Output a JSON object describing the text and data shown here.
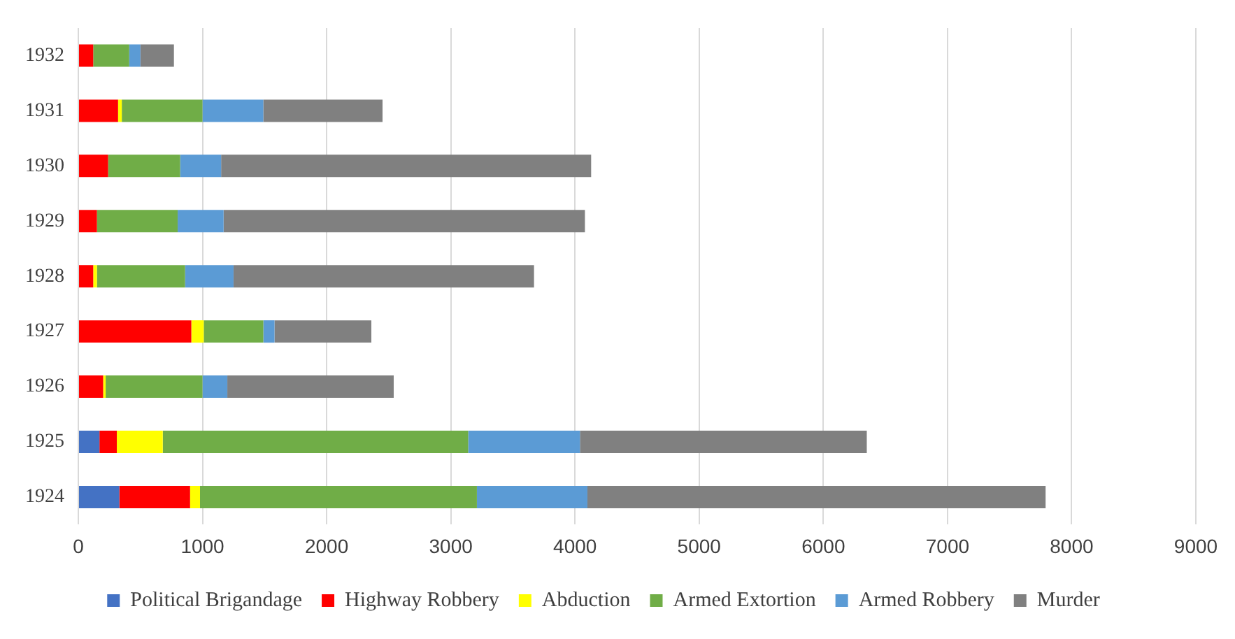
{
  "chart_data": {
    "type": "bar",
    "orientation": "horizontal",
    "stacked": true,
    "categories": [
      "1932",
      "1931",
      "1930",
      "1929",
      "1928",
      "1927",
      "1926",
      "1925",
      "1924"
    ],
    "series": [
      {
        "name": "Political Brigandage",
        "color": "#4472c4",
        "values": [
          0,
          0,
          0,
          0,
          0,
          0,
          0,
          170,
          330
        ]
      },
      {
        "name": "Highway Robbery",
        "color": "#ff0000",
        "values": [
          120,
          320,
          240,
          150,
          120,
          910,
          200,
          140,
          570
        ]
      },
      {
        "name": "Abduction",
        "color": "#ffff00",
        "values": [
          0,
          30,
          0,
          0,
          30,
          100,
          20,
          370,
          80
        ]
      },
      {
        "name": "Armed Extortion",
        "color": "#70ad47",
        "values": [
          290,
          650,
          580,
          650,
          710,
          480,
          780,
          2460,
          2230
        ]
      },
      {
        "name": "Armed Robbery",
        "color": "#5b9bd5",
        "values": [
          90,
          490,
          330,
          370,
          390,
          90,
          200,
          900,
          890
        ]
      },
      {
        "name": "Murder",
        "color": "#808080",
        "values": [
          270,
          960,
          2980,
          2910,
          2420,
          780,
          1340,
          2310,
          3690
        ]
      }
    ],
    "xlim": [
      0,
      9000
    ],
    "xticks": [
      0,
      1000,
      2000,
      3000,
      4000,
      5000,
      6000,
      7000,
      8000,
      9000
    ],
    "grid": "x",
    "legend": "bottom"
  }
}
